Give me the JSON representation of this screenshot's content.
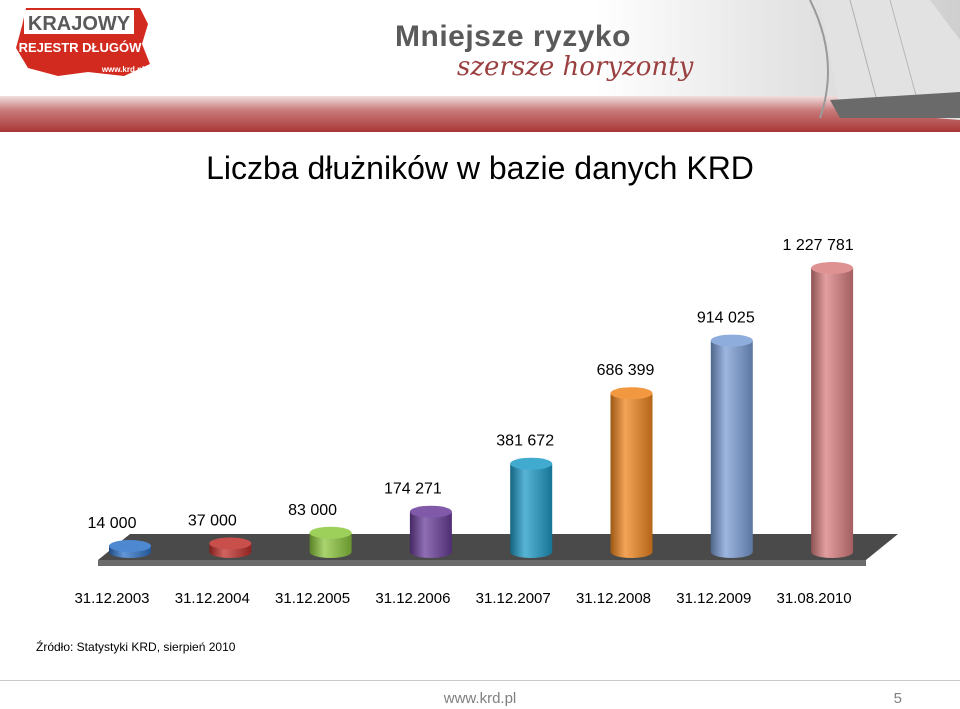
{
  "header": {
    "logo_line1": "KRAJOWY",
    "logo_line2": "REJESTR DŁUGÓW",
    "logo_url": "www.krd.pl",
    "slogan_main": "Mniejsze ryzyko",
    "slogan_sub": "szersze horyzonty"
  },
  "chart_data": {
    "type": "bar",
    "title": "Liczba dłużników w bazie danych KRD",
    "categories": [
      "31.12.2003",
      "31.12.2004",
      "31.12.2005",
      "31.12.2006",
      "31.12.2007",
      "31.12.2008",
      "31.12.2009",
      "31.08.2010"
    ],
    "values": [
      14000,
      37000,
      83000,
      174271,
      381672,
      686399,
      914025,
      1227781
    ],
    "data_labels": [
      "14 000",
      "37 000",
      "83 000",
      "174 271",
      "381 672",
      "686 399",
      "914 025",
      "1 227 781"
    ],
    "bar_colors": [
      "#2f73c8",
      "#c0302b",
      "#8cc63e",
      "#6a3d9a",
      "#1f9bc7",
      "#f0861f",
      "#7b9ed6",
      "#d97f7f"
    ],
    "ylim": [
      0,
      1227781
    ],
    "grid": false,
    "legend": "none",
    "style": "3d-cylinder"
  },
  "source": "Źródło: Statystyki KRD, sierpień 2010",
  "footer": {
    "site": "www.krd.pl",
    "page": "5"
  }
}
